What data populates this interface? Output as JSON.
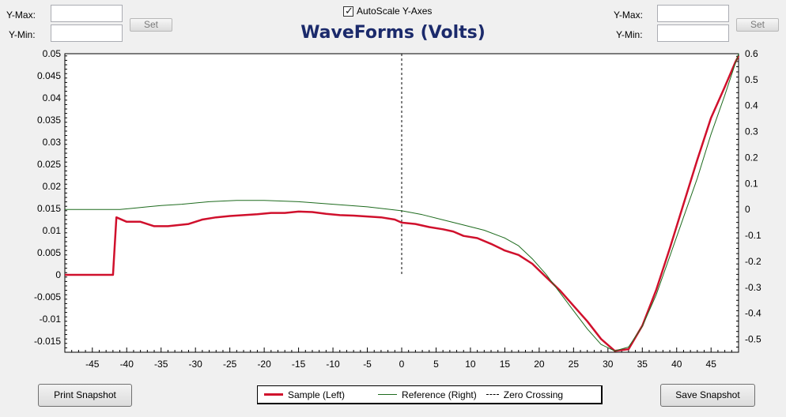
{
  "left_axis_controls": {
    "ymax_label": "Y-Max:",
    "ymin_label": "Y-Min:",
    "ymax_value": "",
    "ymin_value": "",
    "set_label": "Set"
  },
  "right_axis_controls": {
    "ymax_label": "Y-Max:",
    "ymin_label": "Y-Min:",
    "ymax_value": "",
    "ymin_value": "",
    "set_label": "Set"
  },
  "autoscale": {
    "label": "AutoScale Y-Axes",
    "checked": true,
    "check_glyph": "✓"
  },
  "buttons": {
    "print_snapshot": "Print Snapshot",
    "save_snapshot": "Save Snapshot"
  },
  "colors": {
    "sample": "#d0102c",
    "reference": "#1e6b1e",
    "zero_crossing": "#000000",
    "title": "#1b2a6b"
  },
  "chart_data": {
    "type": "line",
    "title": "WaveForms (Volts)",
    "xlim": [
      -49,
      49
    ],
    "x_ticks": [
      -45,
      -40,
      -35,
      -30,
      -25,
      -20,
      -15,
      -10,
      -5,
      0,
      5,
      10,
      15,
      20,
      25,
      30,
      35,
      40,
      45
    ],
    "y_left": {
      "lim": [
        -0.0175,
        0.05
      ],
      "ticks": [
        -0.015,
        -0.01,
        -0.005,
        0,
        0.005,
        0.01,
        0.015,
        0.02,
        0.025,
        0.03,
        0.035,
        0.04,
        0.045,
        0.05
      ],
      "tick_labels": [
        "-0.015",
        "-0.01",
        "-0.005",
        "0",
        "0.005",
        "0.01",
        "0.015",
        "0.02",
        "0.025",
        "0.03",
        "0.035",
        "0.04",
        "0.045",
        "0.05"
      ]
    },
    "y_right": {
      "lim": [
        -0.55,
        0.6
      ],
      "ticks": [
        -0.5,
        -0.4,
        -0.3,
        -0.2,
        -0.1,
        0,
        0.1,
        0.2,
        0.3,
        0.4,
        0.5,
        0.6
      ],
      "tick_labels": [
        "-0.5",
        "-0.4",
        "-0.3",
        "-0.2",
        "-0.1",
        "0",
        "0.1",
        "0.2",
        "0.3",
        "0.4",
        "0.5",
        "0.6"
      ]
    },
    "series": [
      {
        "name": "Sample (Left)",
        "axis": "left",
        "color": "#d0102c",
        "points": [
          [
            -49,
            0.0
          ],
          [
            -42,
            0.0
          ],
          [
            -41.5,
            0.013
          ],
          [
            -40,
            0.012
          ],
          [
            -38,
            0.012
          ],
          [
            -36,
            0.011
          ],
          [
            -34,
            0.011
          ],
          [
            -31,
            0.0115
          ],
          [
            -29,
            0.0125
          ],
          [
            -27,
            0.013
          ],
          [
            -25,
            0.0133
          ],
          [
            -23,
            0.0135
          ],
          [
            -21,
            0.0137
          ],
          [
            -19,
            0.014
          ],
          [
            -17,
            0.014
          ],
          [
            -15,
            0.0143
          ],
          [
            -13,
            0.0142
          ],
          [
            -11,
            0.0138
          ],
          [
            -9,
            0.0135
          ],
          [
            -7,
            0.0134
          ],
          [
            -5,
            0.0132
          ],
          [
            -3,
            0.013
          ],
          [
            -1,
            0.0125
          ],
          [
            0,
            0.0118
          ],
          [
            2,
            0.0115
          ],
          [
            4,
            0.0108
          ],
          [
            6,
            0.0103
          ],
          [
            7.5,
            0.0098
          ],
          [
            9,
            0.0088
          ],
          [
            11,
            0.0083
          ],
          [
            13,
            0.007
          ],
          [
            15,
            0.0055
          ],
          [
            17,
            0.0045
          ],
          [
            19,
            0.0025
          ],
          [
            21,
            -0.0005
          ],
          [
            23,
            -0.0035
          ],
          [
            25,
            -0.007
          ],
          [
            27,
            -0.0105
          ],
          [
            29,
            -0.0145
          ],
          [
            31,
            -0.0172
          ],
          [
            33,
            -0.0168
          ],
          [
            35,
            -0.0115
          ],
          [
            37,
            -0.0035
          ],
          [
            39,
            0.006
          ],
          [
            41,
            0.016
          ],
          [
            43,
            0.026
          ],
          [
            45,
            0.0355
          ],
          [
            47,
            0.0425
          ],
          [
            48.5,
            0.048
          ],
          [
            49,
            0.0495
          ]
        ]
      },
      {
        "name": "Reference (Right)",
        "axis": "right",
        "color": "#1e6b1e",
        "points": [
          [
            -49,
            0.0
          ],
          [
            -41,
            0.0
          ],
          [
            -39,
            0.005
          ],
          [
            -37,
            0.01
          ],
          [
            -35,
            0.015
          ],
          [
            -32,
            0.02
          ],
          [
            -28,
            0.03
          ],
          [
            -24,
            0.035
          ],
          [
            -20,
            0.035
          ],
          [
            -15,
            0.03
          ],
          [
            -10,
            0.02
          ],
          [
            -5,
            0.01
          ],
          [
            0,
            -0.005
          ],
          [
            3,
            -0.02
          ],
          [
            6,
            -0.04
          ],
          [
            9,
            -0.06
          ],
          [
            12,
            -0.08
          ],
          [
            15,
            -0.11
          ],
          [
            17,
            -0.14
          ],
          [
            19,
            -0.19
          ],
          [
            21,
            -0.25
          ],
          [
            23,
            -0.32
          ],
          [
            25,
            -0.39
          ],
          [
            27,
            -0.46
          ],
          [
            29,
            -0.52
          ],
          [
            31,
            -0.545
          ],
          [
            33,
            -0.53
          ],
          [
            35,
            -0.45
          ],
          [
            37,
            -0.33
          ],
          [
            39,
            -0.18
          ],
          [
            41,
            -0.03
          ],
          [
            43,
            0.12
          ],
          [
            45,
            0.29
          ],
          [
            47,
            0.44
          ],
          [
            49,
            0.6
          ]
        ]
      }
    ],
    "zero_crossing": {
      "name": "Zero Crossing",
      "x": 0,
      "y_left_range": [
        0.0,
        0.05
      ]
    },
    "legend_position": "bottom-center",
    "grid": false
  }
}
